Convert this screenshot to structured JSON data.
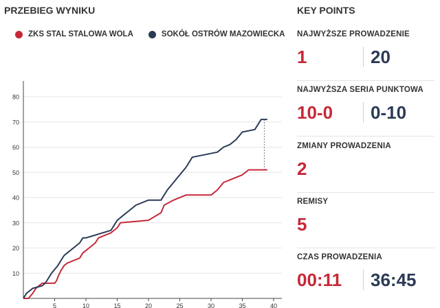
{
  "headings": {
    "left": "PRZEBIEG WYNIKU",
    "right": "KEY POINTS"
  },
  "colors": {
    "team1": "#c62838",
    "team2": "#2b3a55",
    "grid": "#e6e6e6"
  },
  "legend": {
    "team1": "ZKS STAL STALOWA WOLA",
    "team2": "SOKÓŁ OSTRÓW MAZOWIECKA"
  },
  "chart_data": {
    "type": "line",
    "x_ticks": [
      "5",
      "10",
      "15",
      "20",
      "25",
      "30",
      "35",
      "40"
    ],
    "y_ticks": [
      "10",
      "20",
      "30",
      "40",
      "50",
      "60",
      "70",
      "80"
    ],
    "xlim": [
      0,
      40
    ],
    "ylim": [
      0,
      80
    ],
    "grid": true,
    "series": [
      {
        "name": "ZKS STAL STALOWA WOLA",
        "points": [
          [
            0,
            0
          ],
          [
            0.8,
            0
          ],
          [
            1.5,
            2
          ],
          [
            2,
            4
          ],
          [
            3,
            6
          ],
          [
            5,
            6
          ],
          [
            5.3,
            7
          ],
          [
            5.6,
            9
          ],
          [
            6,
            11
          ],
          [
            6.5,
            13
          ],
          [
            7,
            14
          ],
          [
            8,
            15
          ],
          [
            9,
            16
          ],
          [
            9.5,
            18
          ],
          [
            10.5,
            20
          ],
          [
            11.5,
            22
          ],
          [
            12,
            24
          ],
          [
            13,
            25
          ],
          [
            14,
            26
          ],
          [
            15,
            28
          ],
          [
            15.5,
            30
          ],
          [
            20,
            31
          ],
          [
            22,
            34
          ],
          [
            22.5,
            37
          ],
          [
            24,
            39
          ],
          [
            26,
            41
          ],
          [
            30,
            41
          ],
          [
            31,
            43
          ],
          [
            32,
            46
          ],
          [
            33,
            47
          ],
          [
            35,
            49
          ],
          [
            36,
            51
          ],
          [
            39,
            51
          ]
        ]
      },
      {
        "name": "SOKÓŁ OSTRÓW MAZOWIECKA",
        "points": [
          [
            0,
            0
          ],
          [
            0.5,
            2
          ],
          [
            1,
            3
          ],
          [
            1.5,
            4
          ],
          [
            3,
            5
          ],
          [
            3.5,
            6
          ],
          [
            4,
            8
          ],
          [
            4.5,
            10
          ],
          [
            5.5,
            13
          ],
          [
            6,
            15
          ],
          [
            6.5,
            17
          ],
          [
            7,
            18
          ],
          [
            8,
            20
          ],
          [
            9,
            22
          ],
          [
            9.5,
            24
          ],
          [
            10,
            24
          ],
          [
            14,
            27
          ],
          [
            15,
            31
          ],
          [
            16,
            33
          ],
          [
            17,
            35
          ],
          [
            18,
            37
          ],
          [
            20,
            39
          ],
          [
            22,
            39
          ],
          [
            23,
            43
          ],
          [
            24,
            46
          ],
          [
            25,
            49
          ],
          [
            26,
            52
          ],
          [
            27,
            56
          ],
          [
            31,
            58
          ],
          [
            32,
            60
          ],
          [
            33,
            61
          ],
          [
            34,
            63
          ],
          [
            35,
            66
          ],
          [
            37,
            67
          ],
          [
            38,
            71
          ],
          [
            39,
            71
          ]
        ]
      }
    ],
    "connector_x": 38.5
  },
  "key_points": [
    {
      "label": "NAJWYŻSZE PROWADZENIE",
      "team1": "1",
      "team2": "20"
    },
    {
      "label": "NAJWYŻSZA SERIA PUNKTOWA",
      "team1": "10-0",
      "team2": "0-10"
    },
    {
      "label": "ZMIANY PROWADZENIA",
      "value": "2"
    },
    {
      "label": "REMISY",
      "value": "5"
    },
    {
      "label": "CZAS PROWADZENIA",
      "team1": "00:11",
      "team2": "36:45"
    }
  ]
}
